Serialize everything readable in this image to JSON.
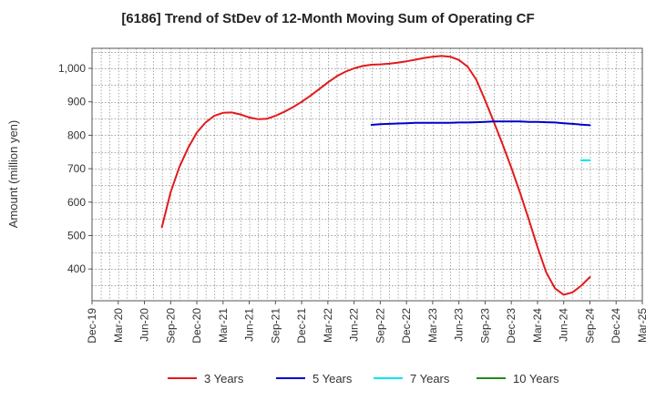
{
  "chart_data": {
    "type": "line",
    "title": "[6186]  Trend of StDev of 12-Month Moving Sum of Operating CF",
    "xlabel": "",
    "ylabel": "Amount (million yen)",
    "ylim": [
      305,
      1060
    ],
    "yticks": [
      400,
      500,
      600,
      700,
      800,
      900,
      1000
    ],
    "ytick_labels": [
      "400",
      "500",
      "600",
      "700",
      "800",
      "900",
      "1,000"
    ],
    "x_start": "2019-12",
    "x_end": "2025-03",
    "xticks": [
      "2019-12",
      "2020-03",
      "2020-06",
      "2020-09",
      "2020-12",
      "2021-03",
      "2021-06",
      "2021-09",
      "2021-12",
      "2022-03",
      "2022-06",
      "2022-09",
      "2022-12",
      "2023-03",
      "2023-06",
      "2023-09",
      "2023-12",
      "2024-03",
      "2024-06",
      "2024-09",
      "2024-12",
      "2025-03"
    ],
    "xtick_labels": [
      "Dec-19",
      "Mar-20",
      "Jun-20",
      "Sep-20",
      "Dec-20",
      "Mar-21",
      "Jun-21",
      "Sep-21",
      "Dec-21",
      "Mar-22",
      "Jun-22",
      "Sep-22",
      "Dec-22",
      "Mar-23",
      "Jun-23",
      "Sep-23",
      "Dec-23",
      "Mar-24",
      "Jun-24",
      "Sep-24",
      "Dec-24",
      "Mar-25"
    ],
    "grid": true,
    "legend_position": "bottom",
    "series": [
      {
        "name": "3 Years",
        "color": "#e31a1c",
        "points": [
          [
            "2020-08",
            525
          ],
          [
            "2020-09",
            630
          ],
          [
            "2020-10",
            705
          ],
          [
            "2020-11",
            762
          ],
          [
            "2020-12",
            808
          ],
          [
            "2021-01",
            838
          ],
          [
            "2021-02",
            858
          ],
          [
            "2021-03",
            867
          ],
          [
            "2021-04",
            868
          ],
          [
            "2021-05",
            862
          ],
          [
            "2021-06",
            853
          ],
          [
            "2021-07",
            848
          ],
          [
            "2021-08",
            849
          ],
          [
            "2021-09",
            858
          ],
          [
            "2021-10",
            870
          ],
          [
            "2021-11",
            884
          ],
          [
            "2021-12",
            900
          ],
          [
            "2022-01",
            918
          ],
          [
            "2022-02",
            938
          ],
          [
            "2022-03",
            958
          ],
          [
            "2022-04",
            976
          ],
          [
            "2022-05",
            990
          ],
          [
            "2022-06",
            1000
          ],
          [
            "2022-07",
            1007
          ],
          [
            "2022-08",
            1011
          ],
          [
            "2022-09",
            1012
          ],
          [
            "2022-10",
            1014
          ],
          [
            "2022-11",
            1017
          ],
          [
            "2022-12",
            1021
          ],
          [
            "2023-01",
            1026
          ],
          [
            "2023-02",
            1031
          ],
          [
            "2023-03",
            1035
          ],
          [
            "2023-04",
            1037
          ],
          [
            "2023-05",
            1035
          ],
          [
            "2023-06",
            1025
          ],
          [
            "2023-07",
            1005
          ],
          [
            "2023-08",
            966
          ],
          [
            "2023-09",
            905
          ],
          [
            "2023-10",
            840
          ],
          [
            "2023-11",
            773
          ],
          [
            "2023-12",
            703
          ],
          [
            "2024-01",
            628
          ],
          [
            "2024-02",
            548
          ],
          [
            "2024-03",
            465
          ],
          [
            "2024-04",
            390
          ],
          [
            "2024-05",
            342
          ],
          [
            "2024-06",
            323
          ],
          [
            "2024-07",
            330
          ],
          [
            "2024-08",
            350
          ],
          [
            "2024-09",
            376
          ]
        ]
      },
      {
        "name": "5 Years",
        "color": "#0000cc",
        "points": [
          [
            "2022-08",
            831
          ],
          [
            "2022-09",
            833
          ],
          [
            "2022-10",
            834
          ],
          [
            "2022-11",
            835
          ],
          [
            "2022-12",
            836
          ],
          [
            "2023-01",
            837
          ],
          [
            "2023-02",
            837
          ],
          [
            "2023-03",
            837
          ],
          [
            "2023-04",
            837
          ],
          [
            "2023-05",
            837
          ],
          [
            "2023-06",
            838
          ],
          [
            "2023-07",
            838
          ],
          [
            "2023-08",
            839
          ],
          [
            "2023-09",
            840
          ],
          [
            "2023-10",
            841
          ],
          [
            "2023-11",
            841
          ],
          [
            "2023-12",
            841
          ],
          [
            "2024-01",
            841
          ],
          [
            "2024-02",
            840
          ],
          [
            "2024-03",
            840
          ],
          [
            "2024-04",
            839
          ],
          [
            "2024-05",
            838
          ],
          [
            "2024-06",
            836
          ],
          [
            "2024-07",
            834
          ],
          [
            "2024-08",
            832
          ],
          [
            "2024-09",
            830
          ]
        ]
      },
      {
        "name": "7 Years",
        "color": "#00e5ee",
        "points": [
          [
            "2024-08",
            725
          ],
          [
            "2024-09",
            725
          ]
        ]
      },
      {
        "name": "10 Years",
        "color": "#228b22",
        "points": []
      }
    ]
  }
}
